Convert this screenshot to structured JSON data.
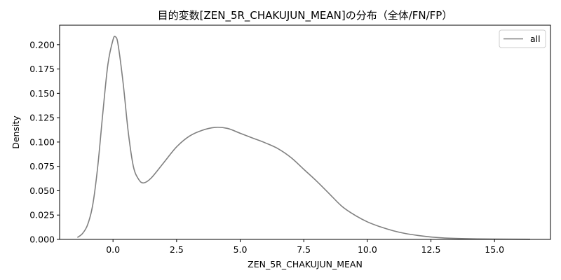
{
  "chart_data": {
    "type": "line",
    "title": "目的変数[ZEN_5R_CHAKUJUN_MEAN]の分布（全体/FN/FP）",
    "xlabel": "ZEN_5R_CHAKUJUN_MEAN",
    "ylabel": "Density",
    "xlim": [
      -2.1,
      17.2
    ],
    "ylim": [
      0,
      0.22
    ],
    "xticks": [
      0.0,
      2.5,
      5.0,
      7.5,
      10.0,
      12.5,
      15.0
    ],
    "xtick_labels": [
      "0.0",
      "2.5",
      "5.0",
      "7.5",
      "10.0",
      "12.5",
      "15.0"
    ],
    "yticks": [
      0.0,
      0.025,
      0.05,
      0.075,
      0.1,
      0.125,
      0.15,
      0.175,
      0.2
    ],
    "ytick_labels": [
      "0.000",
      "0.025",
      "0.050",
      "0.075",
      "0.100",
      "0.125",
      "0.150",
      "0.175",
      "0.200"
    ],
    "legend_position": "top-right",
    "grid": false,
    "series": [
      {
        "name": "all",
        "color": "#808080",
        "x": [
          -1.4,
          -1.2,
          -1.0,
          -0.8,
          -0.6,
          -0.4,
          -0.2,
          0.0,
          0.1,
          0.2,
          0.4,
          0.6,
          0.8,
          1.0,
          1.2,
          1.5,
          2.0,
          2.5,
          3.0,
          3.5,
          4.0,
          4.5,
          5.0,
          5.5,
          6.0,
          6.5,
          7.0,
          7.5,
          8.0,
          8.5,
          9.0,
          9.5,
          10.0,
          10.5,
          11.0,
          11.5,
          12.0,
          12.5,
          13.0,
          14.0,
          15.0,
          16.4
        ],
        "y": [
          0.002,
          0.006,
          0.015,
          0.035,
          0.075,
          0.13,
          0.18,
          0.205,
          0.208,
          0.2,
          0.16,
          0.11,
          0.075,
          0.062,
          0.058,
          0.063,
          0.079,
          0.095,
          0.106,
          0.112,
          0.115,
          0.114,
          0.109,
          0.104,
          0.099,
          0.093,
          0.084,
          0.072,
          0.06,
          0.047,
          0.034,
          0.025,
          0.018,
          0.013,
          0.009,
          0.006,
          0.004,
          0.0025,
          0.0015,
          0.0007,
          0.0003,
          0.0001
        ]
      }
    ]
  }
}
